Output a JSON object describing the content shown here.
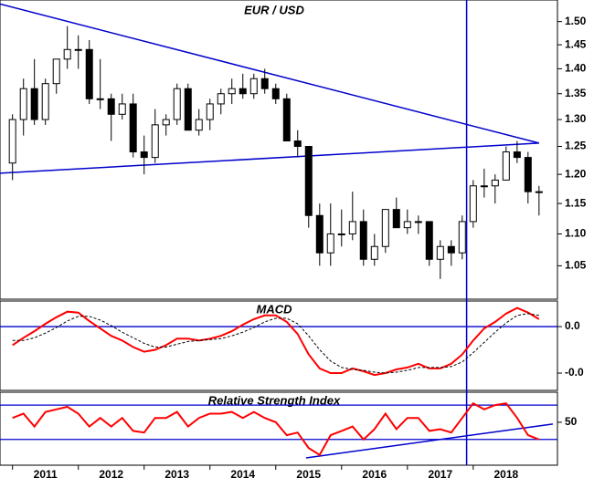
{
  "chart_data": [
    {
      "type": "candlestick",
      "title": "EUR / USD",
      "log": true,
      "x": [
        2010.5,
        2010.667,
        2010.833,
        2011.0,
        2011.167,
        2011.333,
        2011.5,
        2011.667,
        2011.833,
        2012.0,
        2012.167,
        2012.333,
        2012.5,
        2012.667,
        2012.833,
        2013.0,
        2013.167,
        2013.333,
        2013.5,
        2013.667,
        2013.833,
        2014.0,
        2014.167,
        2014.333,
        2014.5,
        2014.667,
        2014.833,
        2015.0,
        2015.167,
        2015.333,
        2015.5,
        2015.667,
        2015.833,
        2016.0,
        2016.167,
        2016.333,
        2016.5,
        2016.667,
        2016.833,
        2017.0,
        2017.167,
        2017.333,
        2017.5,
        2017.667,
        2017.833,
        2018.0,
        2018.167,
        2018.333,
        2018.5
      ],
      "open": [
        1.22,
        1.3,
        1.36,
        1.3,
        1.37,
        1.42,
        1.44,
        1.44,
        1.34,
        1.34,
        1.31,
        1.33,
        1.24,
        1.23,
        1.29,
        1.3,
        1.36,
        1.28,
        1.3,
        1.33,
        1.35,
        1.36,
        1.35,
        1.38,
        1.36,
        1.34,
        1.26,
        1.25,
        1.13,
        1.07,
        1.1,
        1.1,
        1.12,
        1.06,
        1.08,
        1.14,
        1.11,
        1.12,
        1.12,
        1.06,
        1.08,
        1.07,
        1.12,
        1.18,
        1.18,
        1.19,
        1.24,
        1.23,
        1.17
      ],
      "high": [
        1.31,
        1.38,
        1.42,
        1.38,
        1.42,
        1.49,
        1.47,
        1.46,
        1.42,
        1.35,
        1.35,
        1.35,
        1.27,
        1.32,
        1.31,
        1.37,
        1.37,
        1.32,
        1.34,
        1.36,
        1.38,
        1.39,
        1.39,
        1.4,
        1.37,
        1.35,
        1.28,
        1.25,
        1.15,
        1.15,
        1.14,
        1.17,
        1.14,
        1.1,
        1.14,
        1.16,
        1.14,
        1.13,
        1.12,
        1.09,
        1.09,
        1.13,
        1.19,
        1.21,
        1.2,
        1.25,
        1.26,
        1.24,
        1.18
      ],
      "low": [
        1.19,
        1.27,
        1.29,
        1.29,
        1.35,
        1.4,
        1.4,
        1.33,
        1.32,
        1.26,
        1.3,
        1.23,
        1.2,
        1.22,
        1.27,
        1.29,
        1.28,
        1.27,
        1.28,
        1.31,
        1.33,
        1.34,
        1.34,
        1.35,
        1.33,
        1.26,
        1.23,
        1.11,
        1.05,
        1.05,
        1.08,
        1.09,
        1.05,
        1.05,
        1.07,
        1.11,
        1.1,
        1.1,
        1.05,
        1.03,
        1.05,
        1.06,
        1.11,
        1.16,
        1.15,
        1.19,
        1.22,
        1.15,
        1.13
      ],
      "close": [
        1.3,
        1.36,
        1.3,
        1.37,
        1.42,
        1.44,
        1.44,
        1.34,
        1.34,
        1.31,
        1.33,
        1.24,
        1.23,
        1.29,
        1.3,
        1.36,
        1.28,
        1.3,
        1.33,
        1.35,
        1.36,
        1.35,
        1.38,
        1.36,
        1.34,
        1.26,
        1.25,
        1.13,
        1.07,
        1.1,
        1.1,
        1.12,
        1.06,
        1.08,
        1.14,
        1.11,
        1.12,
        1.12,
        1.06,
        1.08,
        1.07,
        1.12,
        1.18,
        1.18,
        1.19,
        1.24,
        1.23,
        1.17,
        1.17
      ],
      "xlim": [
        2010.31,
        2018.78
      ],
      "ylim": [
        1.0,
        1.548
      ],
      "yticks": [
        1.05,
        1.1,
        1.15,
        1.2,
        1.25,
        1.3,
        1.35,
        1.4,
        1.45,
        1.5
      ],
      "ytick_labels": [
        "1.05",
        "1.10",
        "1.15",
        "1.20",
        "1.25",
        "1.30",
        "1.35",
        "1.40",
        "1.45",
        "1.50"
      ],
      "trendlines": [
        {
          "x": [
            2010.31,
            2018.5
          ],
          "y": [
            1.539,
            1.256
          ]
        },
        {
          "x": [
            2010.31,
            2018.5
          ],
          "y": [
            1.202,
            1.256
          ]
        }
      ],
      "vline": 2017.4,
      "line_color": "#0000cc"
    },
    {
      "type": "line",
      "title": "MACD",
      "x": [
        2010.5,
        2010.667,
        2010.833,
        2011.0,
        2011.167,
        2011.333,
        2011.5,
        2011.667,
        2011.833,
        2012.0,
        2012.167,
        2012.333,
        2012.5,
        2012.667,
        2012.833,
        2013.0,
        2013.167,
        2013.333,
        2013.5,
        2013.667,
        2013.833,
        2014.0,
        2014.167,
        2014.333,
        2014.5,
        2014.667,
        2014.833,
        2015.0,
        2015.167,
        2015.333,
        2015.5,
        2015.667,
        2015.833,
        2016.0,
        2016.167,
        2016.333,
        2016.5,
        2016.667,
        2016.833,
        2017.0,
        2017.167,
        2017.333,
        2017.5,
        2017.667,
        2017.833,
        2018.0,
        2018.167,
        2018.333,
        2018.5
      ],
      "series": [
        {
          "color": "#ff0000",
          "values": [
            -0.02,
            -0.012,
            -0.005,
            0.003,
            0.01,
            0.016,
            0.015,
            0.006,
            -0.002,
            -0.01,
            -0.015,
            -0.022,
            -0.027,
            -0.025,
            -0.02,
            -0.013,
            -0.013,
            -0.015,
            -0.013,
            -0.01,
            -0.005,
            0.002,
            0.008,
            0.012,
            0.012,
            0.005,
            -0.008,
            -0.03,
            -0.045,
            -0.05,
            -0.05,
            -0.045,
            -0.048,
            -0.052,
            -0.05,
            -0.046,
            -0.044,
            -0.04,
            -0.045,
            -0.045,
            -0.04,
            -0.03,
            -0.015,
            -0.002,
            0.005,
            0.014,
            0.02,
            0.015,
            0.008
          ]
        },
        {
          "color": "#000000",
          "dashed": true,
          "values": [
            -0.015,
            -0.015,
            -0.012,
            -0.007,
            -0.001,
            0.006,
            0.011,
            0.011,
            0.007,
            0.001,
            -0.006,
            -0.012,
            -0.018,
            -0.022,
            -0.022,
            -0.019,
            -0.016,
            -0.015,
            -0.014,
            -0.013,
            -0.01,
            -0.006,
            -0.001,
            0.005,
            0.009,
            0.009,
            0.003,
            -0.01,
            -0.025,
            -0.037,
            -0.044,
            -0.046,
            -0.047,
            -0.049,
            -0.05,
            -0.049,
            -0.047,
            -0.044,
            -0.044,
            -0.044,
            -0.043,
            -0.038,
            -0.028,
            -0.017,
            -0.006,
            0.004,
            0.012,
            0.014,
            0.012
          ]
        }
      ],
      "xlim": [
        2010.31,
        2018.78
      ],
      "ylim": [
        -0.0686,
        0.0275
      ],
      "yticks": [
        {
          "value": 0,
          "label": "0.0"
        },
        {
          "value": -0.05,
          "label": "-0.0"
        }
      ],
      "hlines": [
        0
      ],
      "line_color": "#0000cc"
    },
    {
      "type": "line",
      "title": "Relative Strength Index",
      "x": [
        2010.5,
        2010.667,
        2010.833,
        2011.0,
        2011.167,
        2011.333,
        2011.5,
        2011.667,
        2011.833,
        2012.0,
        2012.167,
        2012.333,
        2012.5,
        2012.667,
        2012.833,
        2013.0,
        2013.167,
        2013.333,
        2013.5,
        2013.667,
        2013.833,
        2014.0,
        2014.167,
        2014.333,
        2014.5,
        2014.667,
        2014.833,
        2015.0,
        2015.167,
        2015.333,
        2015.5,
        2015.667,
        2015.833,
        2016.0,
        2016.167,
        2016.333,
        2016.5,
        2016.667,
        2016.833,
        2017.0,
        2017.167,
        2017.333,
        2017.5,
        2017.667,
        2017.833,
        2018.0,
        2018.167,
        2018.333,
        2018.5
      ],
      "series": [
        {
          "color": "#ff0000",
          "values": [
            55,
            60,
            45,
            62,
            65,
            68,
            60,
            45,
            55,
            45,
            55,
            40,
            38,
            55,
            55,
            62,
            45,
            55,
            60,
            60,
            62,
            55,
            62,
            55,
            50,
            35,
            38,
            20,
            12,
            35,
            40,
            45,
            30,
            42,
            60,
            42,
            55,
            55,
            40,
            42,
            38,
            55,
            72,
            65,
            70,
            72,
            55,
            35,
            30
          ]
        }
      ],
      "xlim": [
        2010.31,
        2018.78
      ],
      "ylim": [
        0,
        85
      ],
      "yticks": [
        50
      ],
      "hlines": [
        70,
        30
      ],
      "trendlines": [
        {
          "x": [
            2014.96,
            2018.71
          ],
          "y": [
            8.5,
            48
          ]
        }
      ],
      "xticks": [
        2011,
        2012,
        2013,
        2014,
        2015,
        2016,
        2017,
        2018
      ],
      "line_color": "#0000cc"
    }
  ]
}
